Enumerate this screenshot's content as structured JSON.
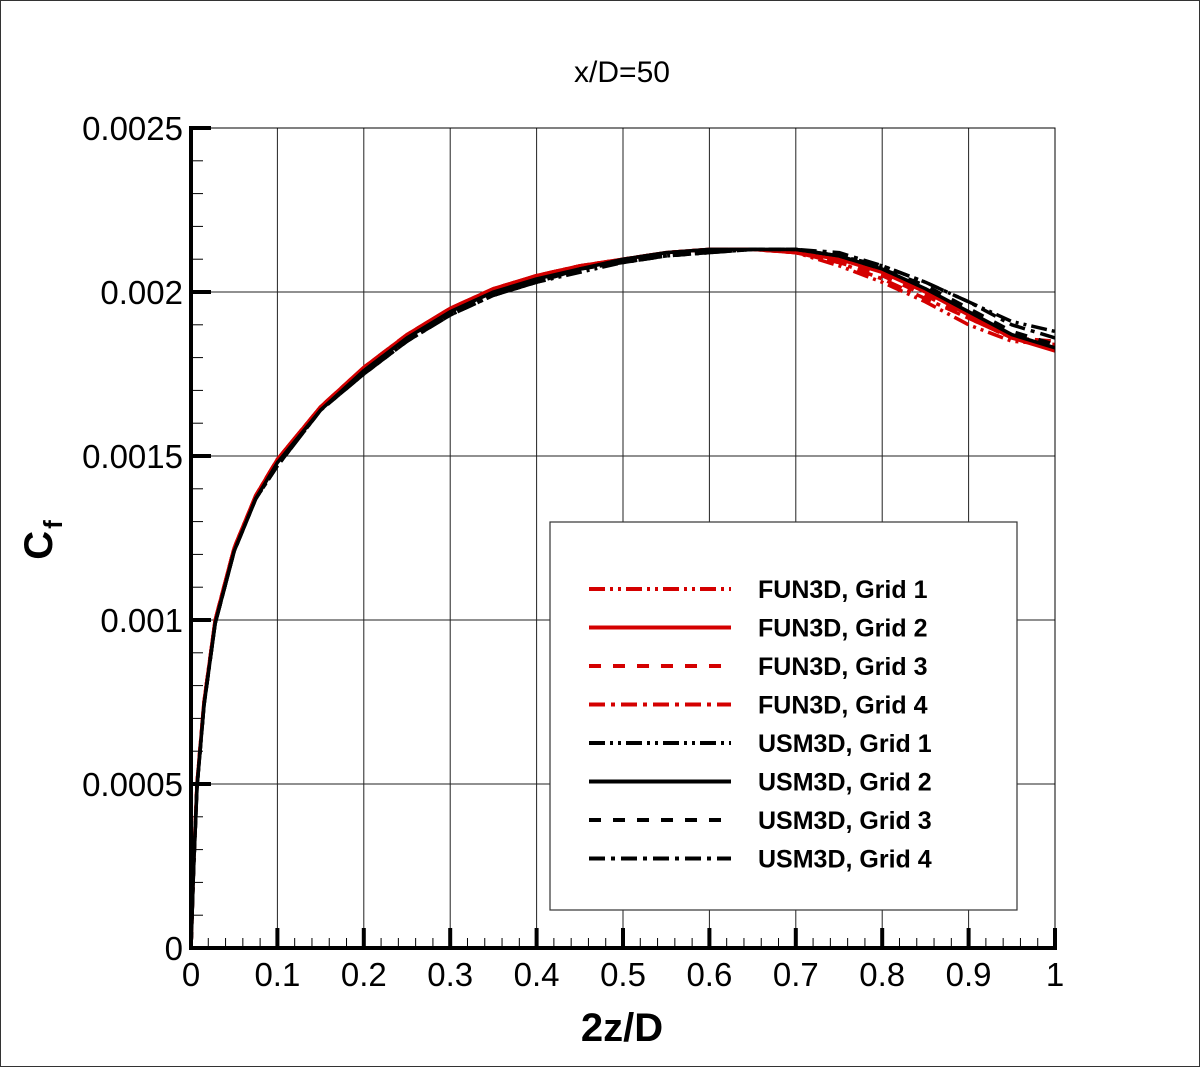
{
  "chart_data": {
    "type": "line",
    "title": "x/D=50",
    "xlabel": "2z/D",
    "ylabel": "C",
    "ylabel_subscript": "f",
    "xlim": [
      0,
      1
    ],
    "ylim": [
      0,
      0.0025
    ],
    "grid": true,
    "legend_position": "lower right (inside plot)",
    "x_ticks": [
      0,
      0.1,
      0.2,
      0.3,
      0.4,
      0.5,
      0.6,
      0.7,
      0.8,
      0.9,
      1
    ],
    "x_tick_labels": [
      "0",
      "0.1",
      "0.2",
      "0.3",
      "0.4",
      "0.5",
      "0.6",
      "0.7",
      "0.8",
      "0.9",
      "1"
    ],
    "y_ticks": [
      0,
      0.0005,
      0.001,
      0.0015,
      0.002,
      0.0025
    ],
    "y_tick_labels": [
      "0",
      "0.0005",
      "0.001",
      "0.0015",
      "0.002",
      "0.0025"
    ],
    "x": [
      0,
      0.003,
      0.007,
      0.015,
      0.028,
      0.05,
      0.075,
      0.1,
      0.15,
      0.2,
      0.25,
      0.3,
      0.35,
      0.4,
      0.45,
      0.5,
      0.55,
      0.6,
      0.65,
      0.7,
      0.75,
      0.8,
      0.85,
      0.9,
      0.95,
      1.0
    ],
    "series": [
      {
        "name": "FUN3D, Grid 1",
        "color": "#d40000",
        "dash": "16 5 3 5 3 5",
        "values": [
          0,
          0.00025,
          0.0005,
          0.00075,
          0.001,
          0.00122,
          0.00138,
          0.00149,
          0.00165,
          0.00176,
          0.00186,
          0.00194,
          0.002,
          0.00204,
          0.00207,
          0.0021,
          0.00212,
          0.00213,
          0.00213,
          0.00212,
          0.00208,
          0.00203,
          0.00197,
          0.0019,
          0.00185,
          0.00184
        ]
      },
      {
        "name": "FUN3D, Grid 2",
        "color": "#d40000",
        "dash": "",
        "values": [
          0,
          0.00025,
          0.0005,
          0.00075,
          0.001,
          0.00122,
          0.00138,
          0.00149,
          0.00165,
          0.00177,
          0.00187,
          0.00195,
          0.00201,
          0.00205,
          0.00208,
          0.0021,
          0.00212,
          0.00213,
          0.00213,
          0.00212,
          0.0021,
          0.00206,
          0.002,
          0.00193,
          0.00186,
          0.00182
        ]
      },
      {
        "name": "FUN3D, Grid 3",
        "color": "#d40000",
        "dash": "12 12",
        "values": [
          0,
          0.00025,
          0.0005,
          0.00075,
          0.001,
          0.00122,
          0.00138,
          0.00149,
          0.00165,
          0.00177,
          0.00187,
          0.00195,
          0.00201,
          0.00205,
          0.00208,
          0.0021,
          0.00212,
          0.00213,
          0.00213,
          0.00212,
          0.00209,
          0.00205,
          0.00199,
          0.00192,
          0.00186,
          0.00183
        ]
      },
      {
        "name": "FUN3D, Grid 4",
        "color": "#d40000",
        "dash": "16 6 4 6",
        "values": [
          0,
          0.00025,
          0.0005,
          0.00075,
          0.001,
          0.00122,
          0.00138,
          0.00149,
          0.00165,
          0.00177,
          0.00187,
          0.00195,
          0.00201,
          0.00205,
          0.00208,
          0.0021,
          0.00212,
          0.00213,
          0.00213,
          0.00212,
          0.00209,
          0.00204,
          0.00198,
          0.00192,
          0.00186,
          0.00185
        ]
      },
      {
        "name": "USM3D, Grid 1",
        "color": "#000000",
        "dash": "16 5 3 5 3 5",
        "values": [
          0,
          0.00024,
          0.00049,
          0.00074,
          0.00099,
          0.00121,
          0.00137,
          0.00147,
          0.00164,
          0.00175,
          0.00185,
          0.00193,
          0.00199,
          0.00203,
          0.00206,
          0.00209,
          0.00211,
          0.00212,
          0.00213,
          0.00213,
          0.00211,
          0.00208,
          0.00203,
          0.00197,
          0.00191,
          0.00188
        ]
      },
      {
        "name": "USM3D, Grid 2",
        "color": "#000000",
        "dash": "",
        "values": [
          0,
          0.00024,
          0.00049,
          0.00074,
          0.00099,
          0.00121,
          0.00137,
          0.00148,
          0.00164,
          0.00176,
          0.00186,
          0.00194,
          0.002,
          0.00204,
          0.00207,
          0.0021,
          0.00212,
          0.00213,
          0.00213,
          0.00213,
          0.00211,
          0.00207,
          0.00201,
          0.00194,
          0.00187,
          0.00183
        ]
      },
      {
        "name": "USM3D, Grid 3",
        "color": "#000000",
        "dash": "12 12",
        "values": [
          0,
          0.00024,
          0.00049,
          0.00074,
          0.00099,
          0.00121,
          0.00137,
          0.00147,
          0.00164,
          0.00175,
          0.00185,
          0.00193,
          0.00199,
          0.00203,
          0.00207,
          0.00209,
          0.00211,
          0.00212,
          0.00213,
          0.00213,
          0.00211,
          0.00207,
          0.00202,
          0.00195,
          0.00188,
          0.00184
        ]
      },
      {
        "name": "USM3D, Grid 4",
        "color": "#000000",
        "dash": "16 6 4 6",
        "values": [
          0,
          0.00024,
          0.00049,
          0.00074,
          0.00099,
          0.00121,
          0.00137,
          0.00147,
          0.00164,
          0.00175,
          0.00185,
          0.00193,
          0.00199,
          0.00203,
          0.00207,
          0.00209,
          0.00211,
          0.00212,
          0.00213,
          0.00213,
          0.00212,
          0.00208,
          0.00203,
          0.00197,
          0.0019,
          0.00186
        ]
      }
    ]
  }
}
